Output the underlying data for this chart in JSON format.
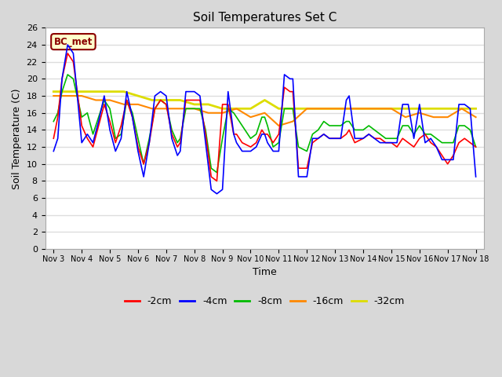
{
  "title": "Soil Temperatures Set C",
  "xlabel": "Time",
  "ylabel": "Soil Temperature (C)",
  "ylim": [
    0,
    26
  ],
  "yticks": [
    0,
    2,
    4,
    6,
    8,
    10,
    12,
    14,
    16,
    18,
    20,
    22,
    24,
    26
  ],
  "xtick_labels": [
    "Nov 3",
    "Nov 4",
    "Nov 5",
    "Nov 6",
    "Nov 7",
    "Nov 8",
    "Nov 9",
    "Nov 10",
    "Nov 11",
    "Nov 12",
    "Nov 13",
    "Nov 14",
    "Nov 15",
    "Nov 16",
    "Nov 17",
    "Nov 18"
  ],
  "annotation_text": "BC_met",
  "annotation_bg": "#ffffcc",
  "annotation_border": "#8B0000",
  "annotation_text_color": "#8B0000",
  "fig_bg": "#d8d8d8",
  "plot_bg": "#ffffff",
  "grid_color": "#dddddd",
  "colors": {
    "-2cm": "#ff0000",
    "-4cm": "#0000ff",
    "-8cm": "#00bb00",
    "-16cm": "#ff8800",
    "-32cm": "#dddd00"
  },
  "x_2cm": [
    0,
    0.15,
    0.3,
    0.5,
    0.7,
    1.0,
    1.2,
    1.4,
    1.6,
    1.8,
    2.0,
    2.2,
    2.4,
    2.6,
    2.8,
    3.0,
    3.2,
    3.4,
    3.6,
    3.8,
    4.0,
    4.2,
    4.4,
    4.5,
    4.7,
    5.0,
    5.2,
    5.4,
    5.6,
    5.8,
    6.0,
    6.2,
    6.4,
    6.5,
    6.7,
    7.0,
    7.2,
    7.4,
    7.5,
    7.6,
    7.8,
    8.0,
    8.2,
    8.4,
    8.5,
    8.7,
    9.0,
    9.2,
    9.4,
    9.6,
    9.8,
    10.0,
    10.2,
    10.4,
    10.5,
    10.7,
    11.0,
    11.2,
    11.4,
    11.6,
    11.8,
    12.0,
    12.2,
    12.4,
    12.6,
    12.8,
    13.0,
    13.2,
    13.4,
    13.6,
    13.8,
    14.0,
    14.2,
    14.4,
    14.6,
    14.8,
    15.0
  ],
  "y_2cm": [
    13.0,
    15.5,
    20.0,
    23.0,
    22.0,
    14.5,
    13.0,
    12.0,
    14.5,
    17.0,
    15.0,
    12.5,
    14.5,
    17.5,
    15.5,
    12.0,
    10.0,
    12.5,
    16.5,
    17.5,
    17.0,
    13.5,
    12.0,
    12.5,
    17.5,
    17.5,
    17.5,
    13.5,
    8.5,
    8.0,
    17.0,
    17.0,
    13.5,
    13.5,
    12.5,
    12.0,
    12.5,
    14.0,
    13.5,
    13.5,
    12.5,
    13.5,
    19.0,
    18.5,
    18.5,
    9.5,
    9.5,
    12.5,
    13.0,
    13.5,
    13.0,
    13.0,
    13.0,
    13.5,
    14.0,
    12.5,
    13.0,
    13.5,
    13.0,
    13.0,
    12.5,
    12.5,
    12.0,
    13.0,
    12.5,
    12.0,
    13.0,
    13.5,
    12.5,
    12.0,
    11.0,
    10.0,
    11.0,
    12.5,
    13.0,
    12.5,
    12.0
  ],
  "x_4cm": [
    0,
    0.15,
    0.3,
    0.5,
    0.7,
    1.0,
    1.2,
    1.4,
    1.6,
    1.8,
    2.0,
    2.2,
    2.4,
    2.6,
    2.8,
    3.0,
    3.2,
    3.4,
    3.6,
    3.8,
    4.0,
    4.2,
    4.4,
    4.5,
    4.7,
    5.0,
    5.2,
    5.4,
    5.6,
    5.8,
    6.0,
    6.2,
    6.4,
    6.5,
    6.7,
    7.0,
    7.2,
    7.4,
    7.5,
    7.6,
    7.8,
    8.0,
    8.2,
    8.4,
    8.5,
    8.7,
    9.0,
    9.2,
    9.4,
    9.6,
    9.8,
    10.0,
    10.2,
    10.4,
    10.5,
    10.7,
    11.0,
    11.2,
    11.4,
    11.6,
    11.8,
    12.0,
    12.2,
    12.4,
    12.6,
    12.8,
    13.0,
    13.2,
    13.4,
    13.6,
    13.8,
    14.0,
    14.2,
    14.4,
    14.6,
    14.8,
    15.0
  ],
  "y_4cm": [
    11.5,
    13.0,
    20.0,
    24.0,
    23.0,
    12.5,
    13.5,
    12.5,
    15.0,
    18.0,
    14.0,
    11.5,
    13.0,
    18.5,
    15.5,
    11.5,
    8.5,
    12.5,
    18.0,
    18.5,
    18.0,
    13.0,
    11.0,
    11.5,
    18.5,
    18.5,
    18.0,
    12.5,
    7.0,
    6.5,
    7.0,
    18.5,
    13.5,
    12.5,
    11.5,
    11.5,
    12.0,
    13.5,
    13.5,
    12.5,
    11.5,
    11.5,
    20.5,
    20.0,
    20.0,
    8.5,
    8.5,
    13.0,
    13.0,
    13.5,
    13.0,
    13.0,
    13.0,
    17.5,
    18.0,
    13.0,
    13.0,
    13.5,
    13.0,
    12.5,
    12.5,
    12.5,
    12.5,
    17.0,
    17.0,
    13.0,
    17.0,
    12.5,
    13.0,
    12.0,
    10.5,
    10.5,
    10.5,
    17.0,
    17.0,
    16.5,
    8.5
  ],
  "x_8cm": [
    0,
    0.15,
    0.3,
    0.5,
    0.7,
    1.0,
    1.2,
    1.4,
    1.6,
    1.8,
    2.0,
    2.2,
    2.4,
    2.6,
    2.8,
    3.0,
    3.2,
    3.4,
    3.6,
    3.8,
    4.0,
    4.2,
    4.4,
    4.5,
    4.7,
    5.0,
    5.2,
    5.4,
    5.6,
    5.8,
    6.0,
    6.2,
    6.4,
    6.5,
    6.7,
    7.0,
    7.2,
    7.4,
    7.5,
    7.6,
    7.8,
    8.0,
    8.2,
    8.4,
    8.5,
    8.7,
    9.0,
    9.2,
    9.4,
    9.6,
    9.8,
    10.0,
    10.2,
    10.4,
    10.5,
    10.7,
    11.0,
    11.2,
    11.4,
    11.6,
    11.8,
    12.0,
    12.2,
    12.4,
    12.6,
    12.8,
    13.0,
    13.2,
    13.4,
    13.6,
    13.8,
    14.0,
    14.2,
    14.4,
    14.6,
    14.8,
    15.0
  ],
  "y_8cm": [
    15.0,
    16.0,
    18.5,
    20.5,
    20.0,
    15.5,
    16.0,
    13.5,
    15.5,
    17.5,
    16.5,
    13.0,
    13.5,
    17.5,
    16.0,
    13.0,
    10.0,
    13.0,
    16.5,
    17.5,
    17.0,
    14.0,
    12.5,
    13.0,
    16.5,
    16.5,
    16.5,
    14.0,
    9.5,
    9.0,
    13.0,
    16.5,
    16.0,
    15.5,
    14.5,
    13.0,
    13.5,
    15.5,
    15.5,
    14.5,
    12.0,
    12.5,
    16.5,
    16.5,
    16.5,
    12.0,
    11.5,
    13.5,
    14.0,
    15.0,
    14.5,
    14.5,
    14.5,
    15.0,
    15.0,
    14.0,
    14.0,
    14.5,
    14.0,
    13.5,
    13.0,
    13.0,
    13.0,
    14.5,
    14.5,
    13.5,
    14.5,
    13.5,
    13.5,
    13.0,
    12.5,
    12.5,
    12.5,
    14.5,
    14.5,
    14.0,
    12.0
  ],
  "x_16cm": [
    0,
    0.2,
    0.5,
    1.0,
    1.5,
    2.0,
    2.5,
    3.0,
    3.5,
    4.0,
    4.5,
    5.0,
    5.5,
    6.0,
    6.5,
    7.0,
    7.5,
    8.0,
    8.5,
    9.0,
    9.5,
    10.0,
    10.5,
    11.0,
    11.5,
    12.0,
    12.5,
    13.0,
    13.5,
    14.0,
    14.5,
    15.0
  ],
  "y_16cm": [
    18.0,
    18.0,
    18.0,
    18.0,
    17.5,
    17.5,
    17.0,
    17.0,
    16.5,
    16.5,
    16.5,
    16.5,
    16.0,
    16.0,
    16.5,
    15.5,
    16.0,
    14.5,
    15.0,
    16.5,
    16.5,
    16.5,
    16.5,
    16.5,
    16.5,
    16.5,
    15.5,
    16.0,
    15.5,
    15.5,
    16.5,
    15.5
  ],
  "x_32cm": [
    0,
    0.5,
    1.0,
    1.5,
    2.0,
    2.5,
    3.0,
    3.5,
    4.0,
    4.5,
    5.0,
    5.5,
    6.0,
    6.5,
    7.0,
    7.5,
    8.0,
    8.5,
    9.0,
    9.5,
    10.0,
    10.5,
    11.0,
    11.5,
    12.0,
    12.5,
    13.0,
    13.5,
    14.0,
    14.5,
    15.0
  ],
  "y_32cm": [
    18.5,
    18.5,
    18.5,
    18.5,
    18.5,
    18.5,
    18.0,
    17.5,
    17.5,
    17.5,
    17.0,
    17.0,
    16.5,
    16.5,
    16.5,
    17.5,
    16.5,
    16.5,
    16.5,
    16.5,
    16.5,
    16.5,
    16.5,
    16.5,
    16.5,
    16.5,
    16.5,
    16.5,
    16.5,
    16.5,
    16.5
  ]
}
